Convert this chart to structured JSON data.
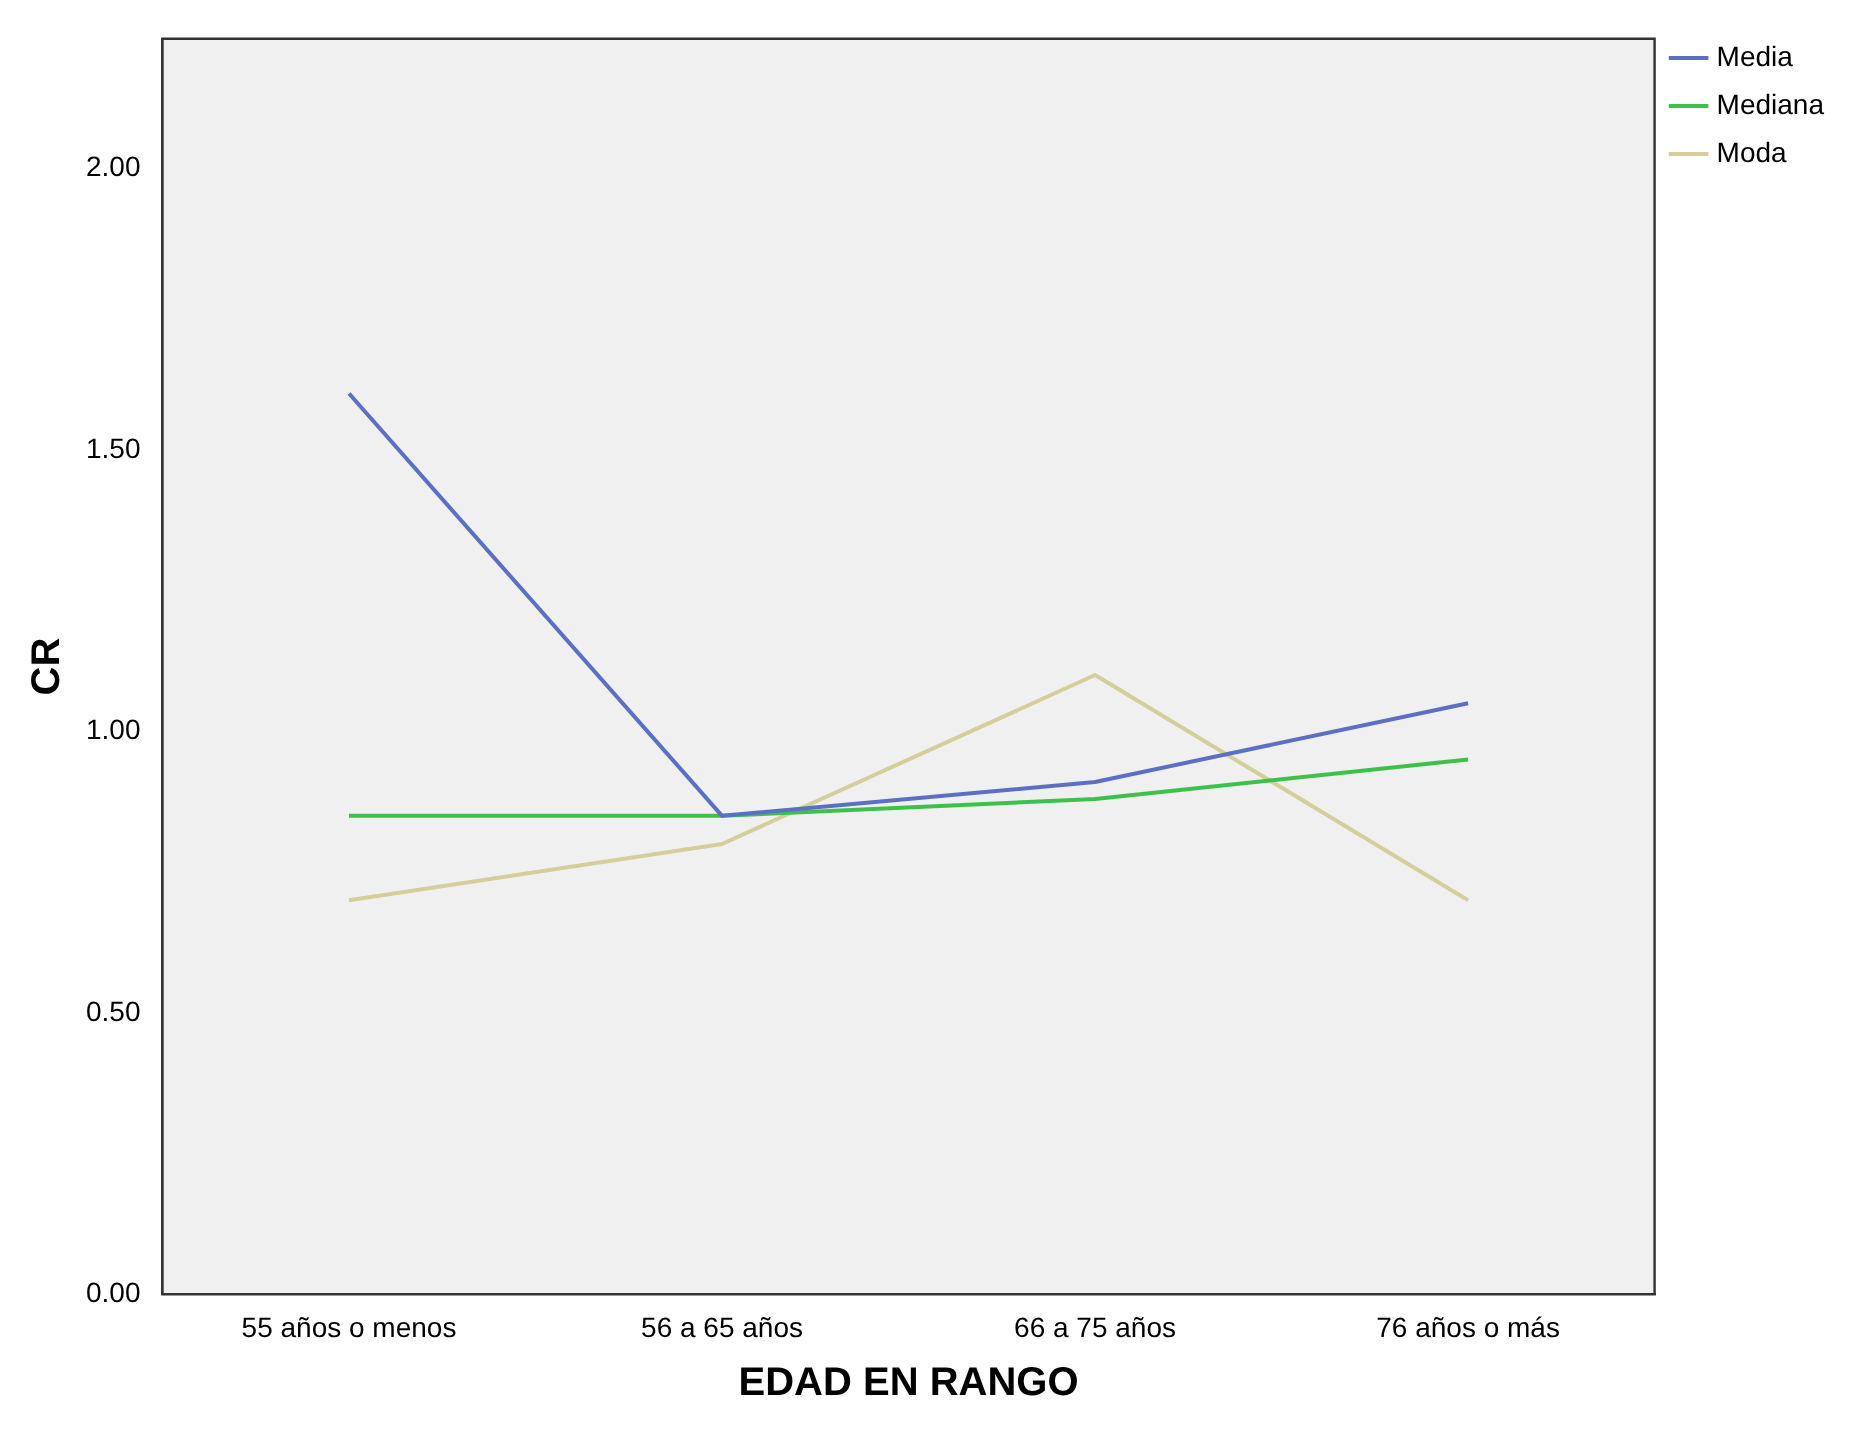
{
  "chart_data": {
    "type": "line",
    "xlabel": "EDAD EN RANGO",
    "ylabel": "CR",
    "categories": [
      "55 años o menos",
      "56 a 65 años",
      "66 a 75 años",
      "76 años o más"
    ],
    "series": [
      {
        "name": "Media",
        "color": "#5b6fc4",
        "values": [
          1.6,
          0.85,
          0.91,
          1.05
        ]
      },
      {
        "name": "Mediana",
        "color": "#3cc24a",
        "values": [
          0.85,
          0.85,
          0.88,
          0.95
        ]
      },
      {
        "name": "Moda",
        "color": "#d4cf9a",
        "values": [
          0.7,
          0.8,
          1.1,
          0.7
        ]
      }
    ],
    "ylim": [
      0,
      2.23
    ],
    "yticks": [
      {
        "value": 0,
        "label": "0.00"
      },
      {
        "value": 0.5,
        "label": "0.50"
      },
      {
        "value": 1,
        "label": "1.00"
      },
      {
        "value": 1.5,
        "label": "1.50"
      },
      {
        "value": 2,
        "label": "2.00"
      }
    ],
    "grid": false,
    "legend": "top right",
    "marker": "none",
    "line_style": "solid"
  }
}
